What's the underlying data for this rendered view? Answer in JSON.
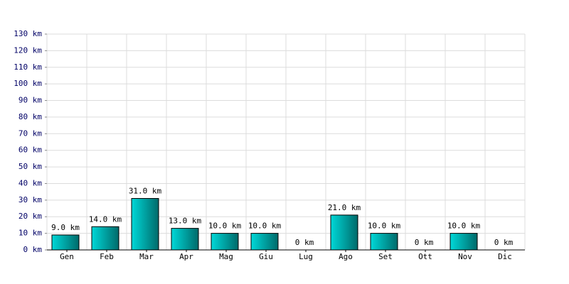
{
  "chart_data": {
    "type": "bar",
    "categories": [
      "Gen",
      "Feb",
      "Mar",
      "Apr",
      "Mag",
      "Giu",
      "Lug",
      "Ago",
      "Set",
      "Ott",
      "Nov",
      "Dic"
    ],
    "values": [
      9,
      14,
      31,
      13,
      10,
      10,
      0,
      21,
      10,
      0,
      10,
      0
    ],
    "value_labels": [
      "9.0 km",
      "14.0 km",
      "31.0 km",
      "13.0 km",
      "10.0 km",
      "10.0 km",
      "0 km",
      "21.0 km",
      "10.0 km",
      "0 km",
      "10.0 km",
      "0 km"
    ],
    "color": "#00d8d8",
    "ylim": [
      0,
      130
    ],
    "yticks": [
      {
        "value": 0,
        "label": "0 km"
      },
      {
        "value": 10,
        "label": "10 km"
      },
      {
        "value": 20,
        "label": "20 km"
      },
      {
        "value": 30,
        "label": "30 km"
      },
      {
        "value": 40,
        "label": "40 km"
      },
      {
        "value": 50,
        "label": "50 km"
      },
      {
        "value": 60,
        "label": "60 km"
      },
      {
        "value": 70,
        "label": "70 km"
      },
      {
        "value": 80,
        "label": "80 km"
      },
      {
        "value": 90,
        "label": "90 km"
      },
      {
        "value": 100,
        "label": "100 km"
      },
      {
        "value": 110,
        "label": "110 km"
      },
      {
        "value": 120,
        "label": "120 km"
      },
      {
        "value": 130,
        "label": "130 km"
      }
    ],
    "grid": true
  }
}
